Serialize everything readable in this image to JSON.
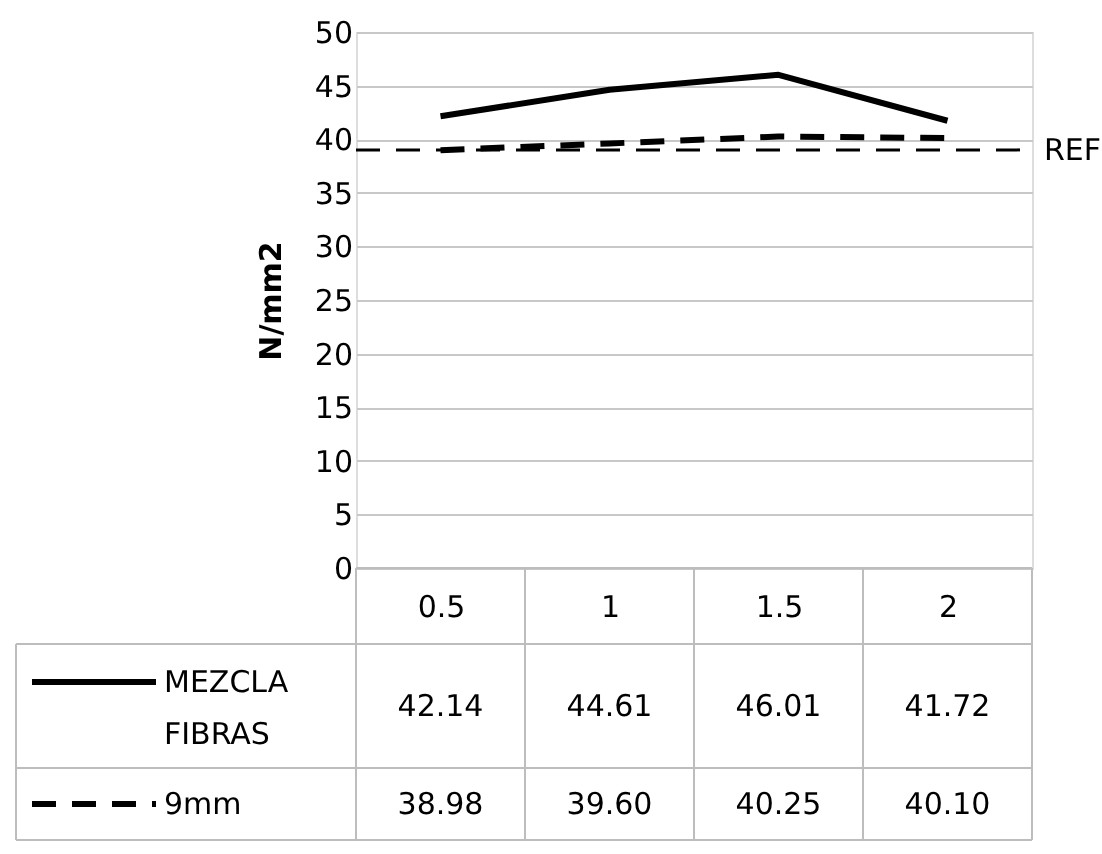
{
  "chart_data": {
    "type": "line",
    "ylabel": "N/mm2",
    "categories": [
      "0.5",
      "1",
      "1.5",
      "2"
    ],
    "ylim": [
      0,
      50
    ],
    "yticks": [
      0,
      5,
      10,
      15,
      20,
      25,
      30,
      35,
      40,
      45,
      50
    ],
    "grid": "y",
    "legend": "bottom",
    "marker": "none",
    "series": [
      {
        "name": "MEZCLA FIBRAS",
        "color": "#000000",
        "line_style": "solid",
        "values": [
          42.14,
          44.61,
          46.01,
          41.72
        ],
        "value_labels": [
          "42.14",
          "44.61",
          "46.01",
          "41.72"
        ]
      },
      {
        "name": "9mm",
        "color": "#000000",
        "line_style": "dashed",
        "values": [
          38.98,
          39.6,
          40.25,
          40.1
        ],
        "value_labels": [
          "38.98",
          "39.60",
          "40.25",
          "40.10"
        ]
      }
    ],
    "ref_lines": [
      {
        "axis": "y",
        "value": 39,
        "label": "REF",
        "color": "#000000",
        "line_style": "dashed"
      }
    ]
  }
}
